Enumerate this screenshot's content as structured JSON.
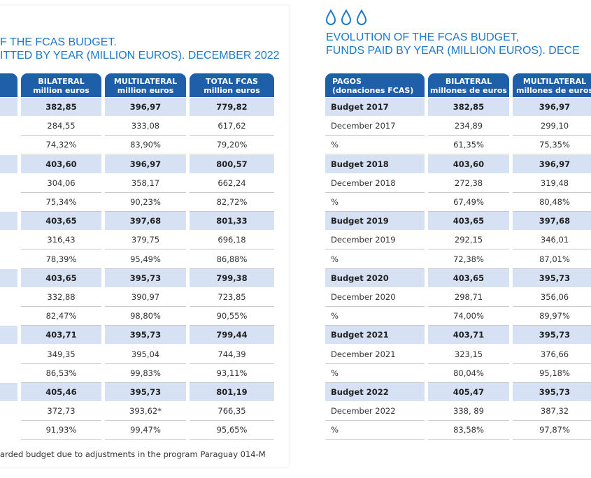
{
  "left": {
    "title": [
      "F THE FCAS BUDGET.",
      "ITTED BY YEAR (MILLION EUROS). DECEMBER 2022"
    ],
    "header": [
      {
        "title": "BILATERAL",
        "unit": "million euros"
      },
      {
        "title": "MULTILATERAL",
        "unit": "million euros"
      },
      {
        "title": "TOTAL FCAS",
        "unit": "million euros"
      }
    ],
    "rows": [
      [
        "382,85",
        "396,97",
        "779,82"
      ],
      [
        "284,55",
        "333,08",
        "617,62"
      ],
      [
        "74,32%",
        "83,90%",
        "79,20%"
      ],
      [
        "403,60",
        "396,97",
        "800,57"
      ],
      [
        "304,06",
        "358,17",
        "662,24"
      ],
      [
        "75,34%",
        "90,23%",
        "82,72%"
      ],
      [
        "403,65",
        "397,68",
        "801,33"
      ],
      [
        "316,43",
        "379,75",
        "696,18"
      ],
      [
        "78,39%",
        "95,49%",
        "86,88%"
      ],
      [
        "403,65",
        "395,73",
        "799,38"
      ],
      [
        "332,88",
        "390,97",
        "723,85"
      ],
      [
        "82,47%",
        "98,80%",
        "90,55%"
      ],
      [
        "403,71",
        "395,73",
        "799,44"
      ],
      [
        "349,35",
        "395,04",
        "744,39"
      ],
      [
        "86,53%",
        "99,83%",
        "93,11%"
      ],
      [
        "405,46",
        "395,73",
        "801,19"
      ],
      [
        "372,73",
        "393,62*",
        "766,35"
      ],
      [
        "91,93%",
        "99,47%",
        "95,65%"
      ]
    ],
    "footnote": "arded budget due to adjustments in the program  Paraguay 014-M"
  },
  "right": {
    "title": [
      "EVOLUTION OF THE FCAS BUDGET,",
      "FUNDS PAID BY YEAR (MILLION EUROS). DECE"
    ],
    "header": [
      {
        "title": "PAGOS",
        "unit": "(donaciones FCAS)"
      },
      {
        "title": "BILATERAL",
        "unit": "millones de euros"
      },
      {
        "title": "MULTILATERAL",
        "unit": "millones de euros"
      }
    ],
    "rows": [
      [
        "Budget 2017",
        "382,85",
        "396,97"
      ],
      [
        "December 2017",
        "234,89",
        "299,10"
      ],
      [
        "%",
        "61,35%",
        "75,35%"
      ],
      [
        "Budget 2018",
        "403,60",
        "396,97"
      ],
      [
        "December 2018",
        "272,38",
        "319,48"
      ],
      [
        "%",
        "67,49%",
        "80,48%"
      ],
      [
        "Budget 2019",
        "403,65",
        "397,68"
      ],
      [
        "December 2019",
        "292,15",
        "346,01"
      ],
      [
        "%",
        "72,38%",
        "87,01%"
      ],
      [
        "Budget 2020",
        "403,65",
        "395,73"
      ],
      [
        "December 2020",
        "298,71",
        "356,06"
      ],
      [
        "%",
        "74,00%",
        "89,97%"
      ],
      [
        "Budget 2021",
        "403,71",
        "395,73"
      ],
      [
        "December 2021",
        "323,15",
        "376,66"
      ],
      [
        "%",
        "80,04%",
        "95,18%"
      ],
      [
        "Budget 2022",
        "405,47",
        "395,73"
      ],
      [
        "December 2022",
        "338, 89",
        "387,32"
      ],
      [
        "%",
        "83,58%",
        "97,87%"
      ]
    ]
  }
}
